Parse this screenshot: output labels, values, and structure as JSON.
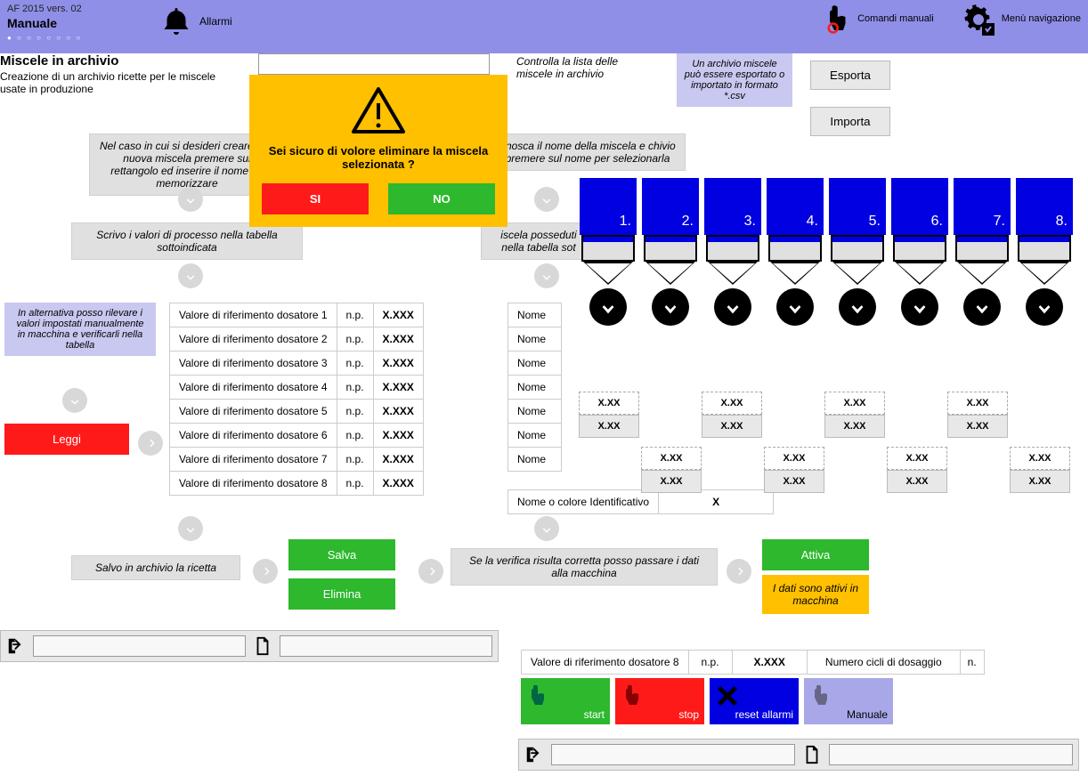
{
  "header": {
    "version": "AF 2015 vers. 02",
    "mode": "Manuale",
    "allarmi": "Allarmi",
    "comandi": "Comandi\nmanuali",
    "menu": "Menù\nnavigazione"
  },
  "section": {
    "title": "Miscele in archivio",
    "sub": "Creazione di un archivio ricette per le miscele usate in produzione"
  },
  "top_right_note": "Controlla la lista delle miscele in archivio",
  "purple_note": "Un archivio miscele può essere esportato o importato in formato *.csv",
  "btns": {
    "esporta": "Esporta",
    "importa": "Importa",
    "leggi": "Leggi",
    "salva": "Salva",
    "elimina": "Elimina",
    "attiva": "Attiva"
  },
  "gray_box_1": "Nel caso in cui si desideri creare una nuova miscela premere sul rettangolo ed inserire il nome da memorizzare",
  "gray_box_2": "onosca il nome della miscela e chivio premere sul nome per selezionarla",
  "gray_box_3": "Scrivo i valori di processo nella tabella sottoindicata",
  "gray_box_4": "iscela posseduti nella tabella sot",
  "purple_box_left": "In alternativa posso rilevare  i valori impostati manualmente in macchina e verificarli nella tabella",
  "save_note": "Salvo in archivio la ricetta",
  "verify_note": "Se la verifica risulta corretta posso passare i dati alla macchina",
  "status_note": "I dati sono attivi in macchina",
  "params": [
    {
      "label": "Valore di riferimento dosatore 1",
      "unit": "n.p.",
      "val": "X.XXX"
    },
    {
      "label": "Valore di riferimento dosatore 2",
      "unit": "n.p.",
      "val": "X.XXX"
    },
    {
      "label": "Valore di riferimento dosatore 3",
      "unit": "n.p.",
      "val": "X.XXX"
    },
    {
      "label": "Valore di riferimento dosatore 4",
      "unit": "n.p.",
      "val": "X.XXX"
    },
    {
      "label": "Valore di riferimento dosatore 5",
      "unit": "n.p.",
      "val": "X.XXX"
    },
    {
      "label": "Valore di riferimento dosatore 6",
      "unit": "n.p.",
      "val": "X.XXX"
    },
    {
      "label": "Valore di riferimento dosatore 7",
      "unit": "n.p.",
      "val": "X.XXX"
    },
    {
      "label": "Valore di riferimento dosatore 8",
      "unit": "n.p.",
      "val": "X.XXX"
    }
  ],
  "nomi": [
    "Nome",
    "Nome",
    "Nome",
    "Nome",
    "Nome",
    "Nome",
    "Nome"
  ],
  "nome_id_label": "Nome o colore Identificativo",
  "nome_id_val": "X",
  "dosatori": [
    "1.",
    "2.",
    "3.",
    "4.",
    "5.",
    "6.",
    "7.",
    "8."
  ],
  "xx": "X.XX",
  "modal": {
    "msg": "Sei sicuro di volore eliminare la miscela selezionata ?",
    "si": "SI",
    "no": "NO"
  },
  "bottom_row": {
    "param": "Valore di riferimento dosatore 8",
    "unit": "n.p.",
    "val": "X.XXX",
    "cicli": "Numero cicli di dosaggio",
    "n": "n."
  },
  "ctrl": {
    "start": "start",
    "stop": "stop",
    "reset": "reset allarmi",
    "man": "Manuale"
  }
}
